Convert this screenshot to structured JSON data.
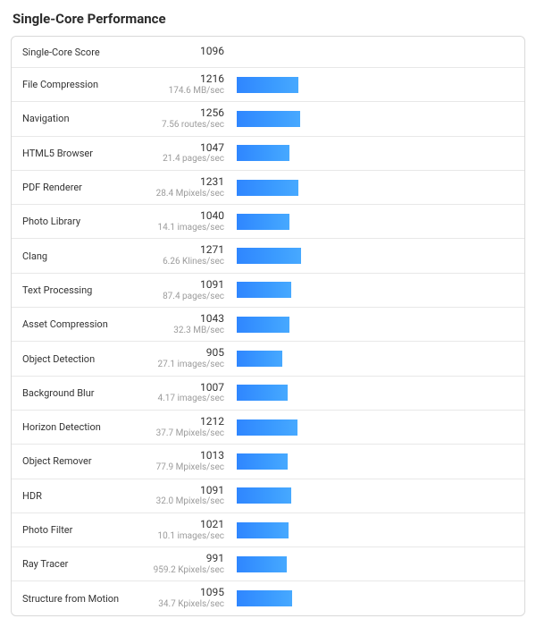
{
  "title": "Single-Core Performance",
  "header": {
    "label": "Single-Core Score",
    "score": "1096"
  },
  "bar_max": 5500,
  "bar_color_start": "#2f86ff",
  "bar_color_end": "#47a9ff",
  "border_color": "#d9d9d9",
  "rows": [
    {
      "label": "File Compression",
      "score": "1216",
      "sub": "174.6 MB/sec"
    },
    {
      "label": "Navigation",
      "score": "1256",
      "sub": "7.56 routes/sec"
    },
    {
      "label": "HTML5 Browser",
      "score": "1047",
      "sub": "21.4 pages/sec"
    },
    {
      "label": "PDF Renderer",
      "score": "1231",
      "sub": "28.4 Mpixels/sec"
    },
    {
      "label": "Photo Library",
      "score": "1040",
      "sub": "14.1 images/sec"
    },
    {
      "label": "Clang",
      "score": "1271",
      "sub": "6.26 Klines/sec"
    },
    {
      "label": "Text Processing",
      "score": "1091",
      "sub": "87.4 pages/sec"
    },
    {
      "label": "Asset Compression",
      "score": "1043",
      "sub": "32.3 MB/sec"
    },
    {
      "label": "Object Detection",
      "score": "905",
      "sub": "27.1 images/sec"
    },
    {
      "label": "Background Blur",
      "score": "1007",
      "sub": "4.17 images/sec"
    },
    {
      "label": "Horizon Detection",
      "score": "1212",
      "sub": "37.7 Mpixels/sec"
    },
    {
      "label": "Object Remover",
      "score": "1013",
      "sub": "77.9 Mpixels/sec"
    },
    {
      "label": "HDR",
      "score": "1091",
      "sub": "32.0 Mpixels/sec"
    },
    {
      "label": "Photo Filter",
      "score": "1021",
      "sub": "10.1 images/sec"
    },
    {
      "label": "Ray Tracer",
      "score": "991",
      "sub": "959.2 Kpixels/sec"
    },
    {
      "label": "Structure from Motion",
      "score": "1095",
      "sub": "34.7 Kpixels/sec"
    }
  ]
}
